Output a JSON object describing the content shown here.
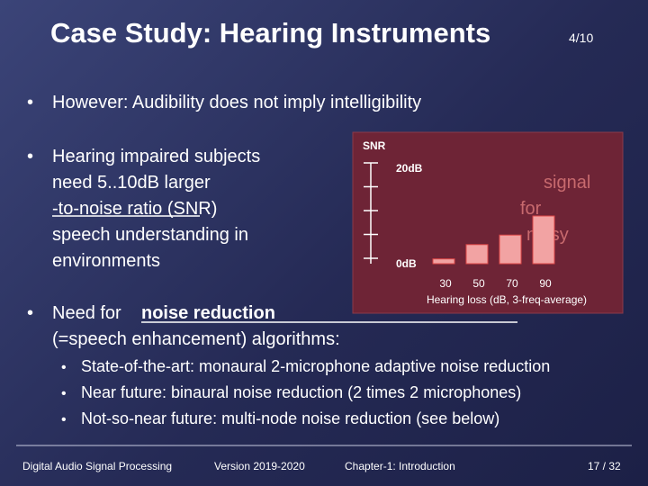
{
  "header": {
    "title": "Case Study: Hearing Instruments",
    "page": "4/10"
  },
  "bullets": {
    "first": "However: Audibility does not imply intelligibility",
    "second": {
      "lines": [
        "Hearing impaired subjects",
        "need 5..10dB larger",
        "-to-noise ratio (SNR)",
        "speech  understanding in",
        "environments"
      ],
      "hidden": [
        "signal",
        "for",
        "noisy"
      ]
    },
    "third": {
      "lead": "Need for",
      "emphasis": "noise reduction",
      "line2": "(=speech enhancement) algorithms:"
    },
    "sub": [
      "State-of-the-art: monaural 2-microphone adaptive noise reduction",
      "Near future: binaural noise reduction (2 times 2 microphones)",
      "Not-so-near future: multi-node noise reduction (see below)"
    ]
  },
  "chart": {
    "type": "bar",
    "ylabel": "SNR",
    "xlabel": "Hearing loss (dB, 3-freq-average)",
    "categories": [
      "30",
      "50",
      "70",
      "90"
    ],
    "values": [
      1,
      4,
      6,
      10
    ],
    "color": "#f2a3a3",
    "ylim": [
      0,
      20
    ],
    "yticks": [
      {
        "value": 0,
        "label": "0dB"
      },
      {
        "value": 20,
        "label": "20dB"
      }
    ],
    "yminor": [
      5,
      10,
      15
    ]
  },
  "footer": {
    "course": "Digital Audio Signal Processing",
    "version": "Version 2019-2020",
    "chapter": "Chapter-1: Introduction",
    "slide": "17 / 32"
  }
}
